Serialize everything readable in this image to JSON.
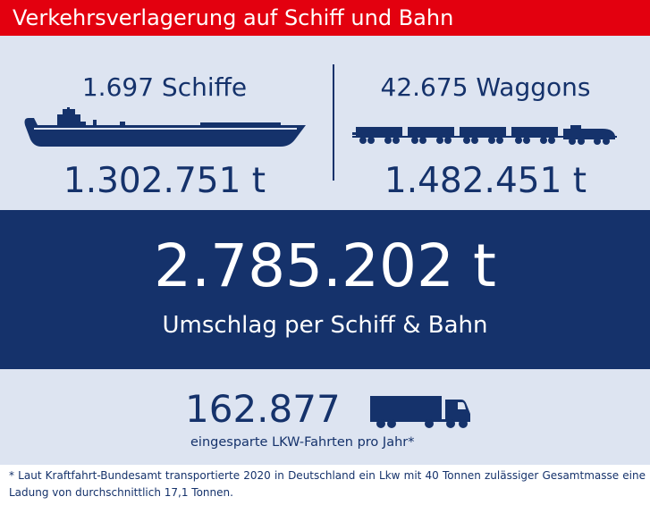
{
  "header": {
    "title": "Verkehrsverlagerung auf Schiff und Bahn"
  },
  "ships": {
    "count_label": "1.697 Schiffe",
    "tonnage": "1.302.751 t",
    "icon": "ship-icon"
  },
  "rail": {
    "count_label": "42.675 Waggons",
    "tonnage": "1.482.451 t",
    "icon": "train-icon"
  },
  "total": {
    "value": "2.785.202 t",
    "label": "Umschlag per Schiff & Bahn"
  },
  "trucks": {
    "value": "162.877",
    "label": "eingesparte LKW-Fahrten pro Jahr*",
    "icon": "truck-icon"
  },
  "footnote": "* Laut Kraftfahrt-Bundesamt transportierte 2020 in Deutschland ein Lkw mit 40 Tonnen zulässiger Gesamtmasse eine Ladung von durchschnittlich 17,1 Tonnen.",
  "colors": {
    "header_red": "#e3000f",
    "navy": "#15326b",
    "light_panel": "#dde4f1",
    "white": "#ffffff"
  }
}
